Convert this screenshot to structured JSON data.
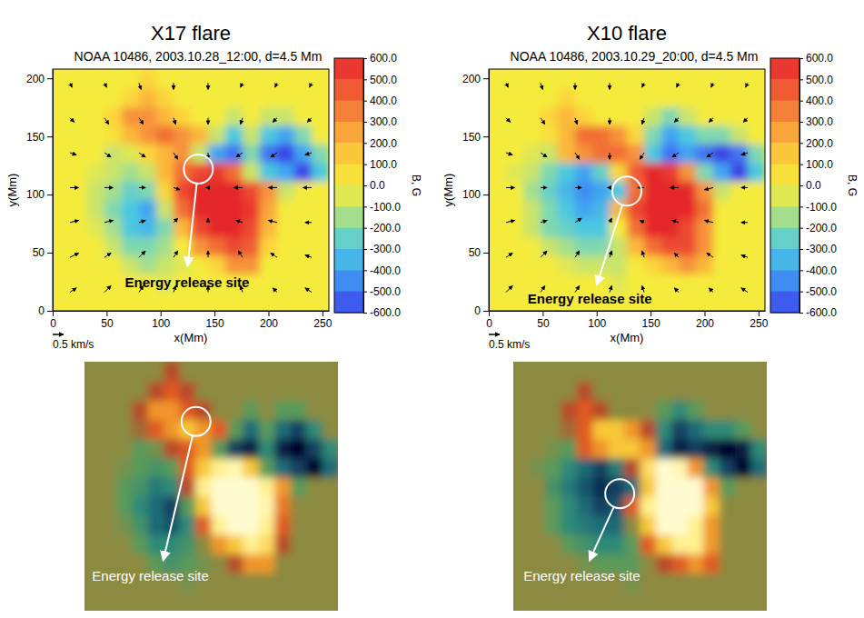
{
  "chart_data": [
    {
      "type": "heatmap",
      "title": "X17 flare",
      "subtitle": "NOAA 10486, 2003.10.28_12:00, d=4.5 Mm",
      "x_label": "x(Mm)",
      "y_label": "y(Mm)",
      "xlim": [
        0,
        256
      ],
      "ylim": [
        0,
        208
      ],
      "xticks": [
        0,
        50,
        100,
        150,
        200,
        250
      ],
      "yticks": [
        0,
        50,
        100,
        150,
        200
      ],
      "x": [
        8,
        24,
        40,
        56,
        72,
        88,
        104,
        120,
        136,
        152,
        168,
        184,
        200,
        216,
        232,
        248
      ],
      "y": [
        8,
        24,
        40,
        56,
        72,
        88,
        104,
        120,
        136,
        152,
        168,
        184,
        200
      ],
      "z": [
        [
          0,
          0,
          0,
          0,
          0,
          0,
          0,
          0,
          0,
          0,
          0,
          0,
          0,
          0,
          0,
          0
        ],
        [
          0,
          0,
          0,
          0,
          0,
          0,
          -50,
          0,
          0,
          0,
          0,
          0,
          0,
          0,
          0,
          0
        ],
        [
          0,
          0,
          0,
          0,
          -100,
          -150,
          -100,
          -50,
          0,
          100,
          300,
          300,
          0,
          0,
          0,
          0
        ],
        [
          0,
          0,
          0,
          -100,
          -200,
          -200,
          -150,
          0,
          300,
          400,
          500,
          450,
          100,
          0,
          0,
          0
        ],
        [
          0,
          0,
          -50,
          -150,
          -300,
          -350,
          -200,
          200,
          500,
          600,
          600,
          500,
          200,
          0,
          0,
          0
        ],
        [
          0,
          0,
          -100,
          -200,
          -300,
          -400,
          -100,
          400,
          600,
          600,
          600,
          550,
          250,
          0,
          0,
          0
        ],
        [
          0,
          0,
          -100,
          -150,
          -250,
          -200,
          100,
          500,
          600,
          600,
          600,
          500,
          300,
          -100,
          0,
          0
        ],
        [
          0,
          0,
          -50,
          -100,
          -150,
          -100,
          200,
          400,
          500,
          550,
          400,
          -100,
          -300,
          -400,
          -600,
          -300
        ],
        [
          0,
          0,
          0,
          -100,
          -50,
          100,
          200,
          300,
          -100,
          -400,
          -500,
          -200,
          -500,
          -600,
          -400,
          -200
        ],
        [
          0,
          0,
          0,
          50,
          200,
          300,
          400,
          300,
          200,
          -100,
          -300,
          -100,
          -300,
          -400,
          -200,
          0
        ],
        [
          0,
          0,
          0,
          100,
          300,
          300,
          200,
          100,
          0,
          0,
          -100,
          0,
          -100,
          -100,
          0,
          0
        ],
        [
          0,
          0,
          0,
          0,
          100,
          200,
          100,
          0,
          0,
          0,
          0,
          0,
          0,
          0,
          0,
          0
        ],
        [
          0,
          0,
          0,
          0,
          0,
          100,
          0,
          0,
          0,
          0,
          0,
          0,
          0,
          0,
          0,
          0
        ]
      ],
      "colorbar": {
        "range": [
          -600,
          600
        ],
        "label": "B, G",
        "ticks": [
          {
            "value": 600,
            "label": "600.0"
          },
          {
            "value": 500,
            "label": "500.0"
          },
          {
            "value": 400,
            "label": "400.0"
          },
          {
            "value": 300,
            "label": "300.0"
          },
          {
            "value": 200,
            "label": "200.0"
          },
          {
            "value": 100,
            "label": "100.0"
          },
          {
            "value": 0,
            "label": "0.0"
          },
          {
            "value": -100,
            "label": "-100.0"
          },
          {
            "value": -200,
            "label": "-200.0"
          },
          {
            "value": -300,
            "label": "-300.0"
          },
          {
            "value": -400,
            "label": "-400.0"
          },
          {
            "value": -500,
            "label": "-500.0"
          },
          {
            "value": -600,
            "label": "-600.0"
          }
        ]
      },
      "vectors": {
        "x": [
          16,
          48,
          80,
          112,
          144,
          176,
          208,
          240
        ],
        "y": [
          16,
          46,
          76,
          106,
          136,
          166,
          196
        ],
        "u": [
          [
            0.3,
            0.3,
            0.2,
            0.1,
            0,
            -0.1,
            -0.2,
            -0.3
          ],
          [
            0.4,
            0.3,
            0.3,
            0.2,
            0,
            -0.2,
            -0.3,
            -0.3
          ],
          [
            0.4,
            0.4,
            0.3,
            0.2,
            0,
            -0.3,
            -0.4,
            -0.3
          ],
          [
            0.4,
            0.4,
            0.3,
            0.3,
            -0.1,
            -0.4,
            -0.4,
            -0.4
          ],
          [
            0.3,
            0.3,
            0.3,
            0.2,
            0,
            -0.3,
            -0.3,
            -0.3
          ],
          [
            0.2,
            0.2,
            0.2,
            0.1,
            0,
            -0.1,
            -0.2,
            -0.2
          ],
          [
            0.1,
            0.1,
            0.1,
            0,
            0,
            -0.1,
            -0.1,
            -0.1
          ]
        ],
        "v": [
          [
            0.2,
            0.3,
            0.3,
            0.3,
            0.3,
            0.3,
            0.2,
            0.2
          ],
          [
            0.2,
            0.2,
            0.3,
            0.3,
            0.3,
            0.3,
            0.2,
            0.1
          ],
          [
            0.1,
            0.1,
            0.1,
            0.2,
            0.2,
            0.1,
            0.1,
            0
          ],
          [
            0,
            0,
            0,
            -0.1,
            0,
            0,
            0,
            0
          ],
          [
            -0.1,
            -0.2,
            -0.2,
            -0.3,
            -0.3,
            -0.2,
            -0.2,
            -0.1
          ],
          [
            -0.2,
            -0.3,
            -0.3,
            -0.3,
            -0.3,
            -0.3,
            -0.2,
            -0.2
          ],
          [
            -0.2,
            -0.2,
            -0.3,
            -0.3,
            -0.3,
            -0.2,
            -0.2,
            -0.2
          ]
        ]
      },
      "vector_key": {
        "value": 0.5,
        "label": "0.5 km/s"
      },
      "annotation": "Energy release site",
      "image_annotation": "Energy release site"
    },
    {
      "type": "heatmap",
      "title": "X10 flare",
      "subtitle": "NOAA 10486, 2003.10.29_20:00, d=4.5 Mm",
      "x_label": "x(Mm)",
      "y_label": "y(Mm)",
      "xlim": [
        0,
        256
      ],
      "ylim": [
        0,
        208
      ],
      "xticks": [
        0,
        50,
        100,
        150,
        200,
        250
      ],
      "yticks": [
        0,
        50,
        100,
        150,
        200
      ],
      "x": [
        8,
        24,
        40,
        56,
        72,
        88,
        104,
        120,
        136,
        152,
        168,
        184,
        200,
        216,
        232,
        248
      ],
      "y": [
        8,
        24,
        40,
        56,
        72,
        88,
        104,
        120,
        136,
        152,
        168,
        184,
        200
      ],
      "z": [
        [
          0,
          0,
          0,
          0,
          0,
          0,
          0,
          0,
          0,
          0,
          0,
          0,
          0,
          0,
          0,
          0
        ],
        [
          0,
          0,
          0,
          0,
          0,
          0,
          0,
          -50,
          0,
          0,
          0,
          0,
          0,
          0,
          0,
          0
        ],
        [
          0,
          0,
          0,
          0,
          -50,
          -100,
          -100,
          -100,
          0,
          100,
          200,
          300,
          200,
          0,
          0,
          0
        ],
        [
          0,
          0,
          0,
          -100,
          -150,
          -200,
          -200,
          -100,
          200,
          400,
          500,
          500,
          300,
          0,
          0,
          0
        ],
        [
          0,
          0,
          -100,
          -200,
          -250,
          -300,
          -300,
          0,
          400,
          600,
          600,
          500,
          300,
          0,
          0,
          0
        ],
        [
          0,
          0,
          -100,
          -200,
          -300,
          -400,
          -350,
          200,
          500,
          600,
          600,
          600,
          400,
          0,
          0,
          0
        ],
        [
          0,
          0,
          -150,
          -250,
          -350,
          -450,
          -400,
          -300,
          400,
          600,
          600,
          600,
          300,
          -100,
          0,
          0
        ],
        [
          0,
          -50,
          -100,
          -200,
          -300,
          -400,
          -250,
          100,
          450,
          600,
          550,
          300,
          -200,
          -400,
          -600,
          -300
        ],
        [
          0,
          0,
          -50,
          -100,
          200,
          300,
          400,
          400,
          300,
          -300,
          -500,
          -400,
          -500,
          -600,
          -500,
          -200
        ],
        [
          0,
          0,
          0,
          50,
          200,
          400,
          400,
          300,
          100,
          -200,
          -400,
          -300,
          -200,
          -200,
          -100,
          0
        ],
        [
          0,
          0,
          0,
          100,
          200,
          100,
          0,
          0,
          0,
          -100,
          -200,
          -100,
          0,
          0,
          0,
          0
        ],
        [
          0,
          0,
          0,
          0,
          100,
          0,
          0,
          0,
          0,
          0,
          0,
          0,
          0,
          0,
          0,
          0
        ],
        [
          0,
          0,
          0,
          0,
          0,
          0,
          0,
          0,
          0,
          0,
          0,
          0,
          0,
          0,
          0,
          0
        ]
      ],
      "colorbar": {
        "range": [
          -600,
          600
        ],
        "label": "B, G",
        "ticks": [
          {
            "value": 600,
            "label": "600.0"
          },
          {
            "value": 500,
            "label": "500.0"
          },
          {
            "value": 400,
            "label": "400.0"
          },
          {
            "value": 300,
            "label": "300.0"
          },
          {
            "value": 200,
            "label": "200.0"
          },
          {
            "value": 100,
            "label": "100.0"
          },
          {
            "value": 0,
            "label": "0.0"
          },
          {
            "value": -100,
            "label": "-100.0"
          },
          {
            "value": -200,
            "label": "-200.0"
          },
          {
            "value": -300,
            "label": "-300.0"
          },
          {
            "value": -400,
            "label": "-400.0"
          },
          {
            "value": -500,
            "label": "-500.0"
          },
          {
            "value": -600,
            "label": "-600.0"
          }
        ]
      },
      "vectors": {
        "x": [
          16,
          48,
          80,
          112,
          144,
          176,
          208,
          240
        ],
        "y": [
          16,
          46,
          76,
          106,
          136,
          166,
          196
        ],
        "u": [
          [
            0.3,
            0.2,
            0.2,
            0.1,
            -0.1,
            -0.2,
            -0.2,
            -0.3
          ],
          [
            0.3,
            0.3,
            0.2,
            0.1,
            -0.1,
            -0.2,
            -0.3,
            -0.3
          ],
          [
            0.4,
            0.3,
            0.3,
            0.1,
            -0.2,
            -0.3,
            -0.4,
            -0.3
          ],
          [
            0.4,
            0.3,
            0.3,
            -0.1,
            -0.3,
            -0.4,
            -0.4,
            -0.3
          ],
          [
            0.3,
            0.3,
            0.2,
            0,
            -0.2,
            -0.3,
            -0.3,
            -0.3
          ],
          [
            0.2,
            0.2,
            0.1,
            0,
            -0.1,
            -0.2,
            -0.2,
            -0.2
          ],
          [
            0.1,
            0.1,
            0,
            0,
            -0.1,
            -0.1,
            -0.1,
            -0.1
          ]
        ],
        "v": [
          [
            0.3,
            0.3,
            0.3,
            0.3,
            0.3,
            0.2,
            0.2,
            0.2
          ],
          [
            0.2,
            0.3,
            0.3,
            0.3,
            0.3,
            0.2,
            0.2,
            0.1
          ],
          [
            0.1,
            0.1,
            0.2,
            0.2,
            0.1,
            0.1,
            0.1,
            0
          ],
          [
            0,
            0,
            0,
            0,
            0,
            0,
            -0.1,
            0
          ],
          [
            -0.1,
            -0.2,
            -0.3,
            -0.3,
            -0.3,
            -0.2,
            -0.2,
            -0.1
          ],
          [
            -0.2,
            -0.3,
            -0.3,
            -0.3,
            -0.3,
            -0.2,
            -0.2,
            -0.2
          ],
          [
            -0.2,
            -0.3,
            -0.3,
            -0.3,
            -0.2,
            -0.2,
            -0.2,
            -0.2
          ]
        ]
      },
      "vector_key": {
        "value": 0.5,
        "label": "0.5 km/s"
      },
      "annotation": "Energy release site",
      "image_annotation": "Energy release site"
    }
  ]
}
